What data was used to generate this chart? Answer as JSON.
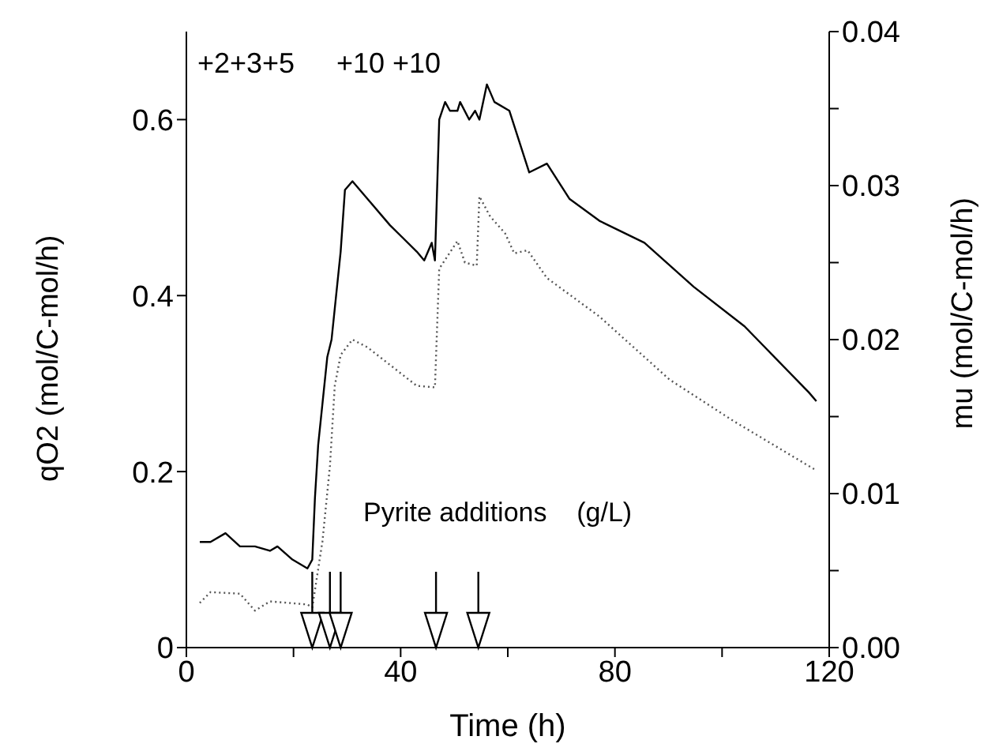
{
  "chart_data": {
    "type": "line",
    "xlabel": "Time   (h)",
    "ylabel": "qO2  (mol/C-mol/h)",
    "y2label": "mu   (mol/C-mol/h)",
    "xlim": [
      0,
      120
    ],
    "xticks": [
      0,
      {
        "value": 20,
        "label": null
      },
      40,
      {
        "value": 60,
        "label": null
      },
      80,
      {
        "value": 100,
        "label": null
      },
      120
    ],
    "ylim": [
      0,
      0.7
    ],
    "yticks": [
      0,
      0.2,
      0.4,
      0.6
    ],
    "y2lim": [
      0,
      0.04
    ],
    "y2ticks": [
      {
        "value": 0,
        "label": "0.00"
      },
      {
        "value": 0.005,
        "label": null
      },
      {
        "value": 0.01,
        "label": "0.01"
      },
      {
        "value": 0.015,
        "label": null
      },
      {
        "value": 0.02,
        "label": "0.02"
      },
      {
        "value": 0.025,
        "label": null
      },
      {
        "value": 0.03,
        "label": "0.03"
      },
      {
        "value": 0.035,
        "label": null
      },
      {
        "value": 0.04,
        "label": "0.04"
      }
    ],
    "series": [
      {
        "color": "#000000",
        "line_style": "solid",
        "x": [
          2.5,
          4.5,
          7.3,
          10,
          12.8,
          15.6,
          17,
          19.8,
          22.6,
          23.5,
          24,
          24.6,
          26.3,
          27.1,
          28.8,
          29.6,
          31,
          33.8,
          38,
          43,
          44.4,
          45.8,
          46.4,
          47.2,
          48.3,
          49.2,
          50.6,
          51.1,
          52.8,
          53.9,
          54.7,
          56.1,
          57.5,
          60.3,
          64,
          67.3,
          71.5,
          77.1,
          85.5,
          94.7,
          104.2,
          116.2,
          117.6
        ],
        "values": [
          0.12,
          0.12,
          0.13,
          0.115,
          0.115,
          0.11,
          0.115,
          0.1,
          0.09,
          0.1,
          0.17,
          0.23,
          0.33,
          0.35,
          0.45,
          0.52,
          0.53,
          0.51,
          0.48,
          0.45,
          0.44,
          0.46,
          0.44,
          0.6,
          0.62,
          0.61,
          0.61,
          0.62,
          0.6,
          0.61,
          0.6,
          0.64,
          0.62,
          0.61,
          0.54,
          0.55,
          0.51,
          0.485,
          0.46,
          0.41,
          0.365,
          0.29,
          0.28
        ]
      },
      {
        "color": "#555555",
        "line_style": "dotted",
        "axis": "y2",
        "x": [
          2.5,
          4.5,
          10,
          12.8,
          15.6,
          22.6,
          23.5,
          25.4,
          26.8,
          27.7,
          28.8,
          31,
          33.8,
          43,
          46.4,
          47.2,
          50.6,
          52,
          54.2,
          54.7,
          56.7,
          59.5,
          61.2,
          63.7,
          67.3,
          77.1,
          90.2,
          102.2,
          117.6
        ],
        "values": [
          0.0029,
          0.0036,
          0.0035,
          0.0024,
          0.003,
          0.0028,
          0.0026,
          0.0069,
          0.0118,
          0.017,
          0.019,
          0.02,
          0.0195,
          0.017,
          0.0169,
          0.0246,
          0.0264,
          0.025,
          0.0248,
          0.0293,
          0.028,
          0.0269,
          0.0256,
          0.0258,
          0.024,
          0.0215,
          0.0174,
          0.0147,
          0.0115
        ]
      }
    ],
    "ref_lines": [
      {
        "axis": "x",
        "value": 23.5
      },
      {
        "axis": "x",
        "value": 26.8
      },
      {
        "axis": "x",
        "value": 28.8
      },
      {
        "axis": "x",
        "value": 46.6
      },
      {
        "axis": "x",
        "value": 54.5
      }
    ],
    "annotations": [
      "+2+3+5",
      "+10 +10",
      "Pyrite additions    (g/L)"
    ],
    "marker": "none"
  }
}
